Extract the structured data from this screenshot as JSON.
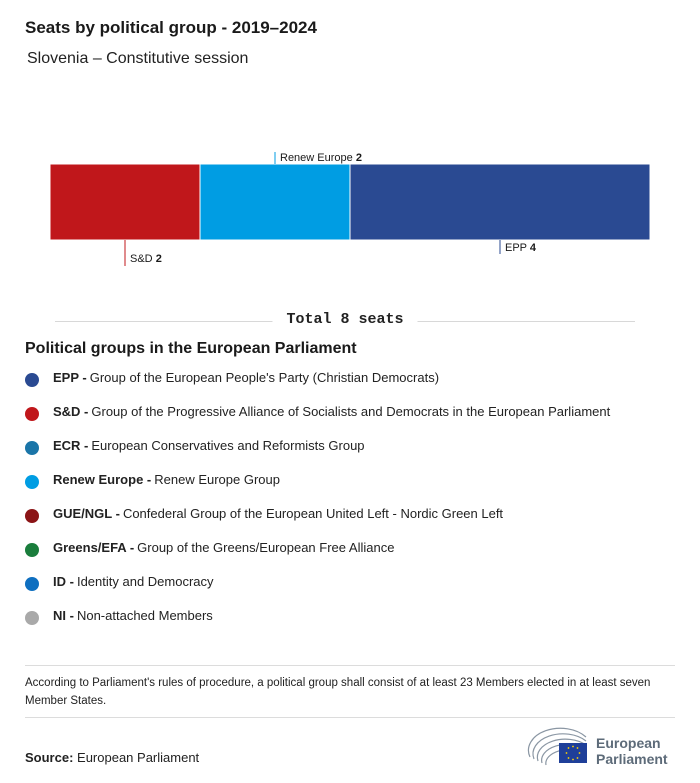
{
  "title": "Seats by political group - 2019–2024",
  "subtitle": "Slovenia – Constitutive session",
  "chart_data": {
    "type": "bar",
    "orientation": "horizontal-stacked",
    "categories": [
      "S&D",
      "Renew Europe",
      "EPP"
    ],
    "values": [
      2,
      2,
      4
    ],
    "colors": [
      "#c0171b",
      "#009de3",
      "#2a4a92"
    ],
    "total_label": "Total 8 seats"
  },
  "groups_title": "Political groups in the European Parliament",
  "groups": [
    {
      "abbr": "EPP -",
      "name": "Group of the European People's Party (Christian Democrats)",
      "color": "#2a4a92"
    },
    {
      "abbr": "S&D -",
      "name": "Group of the Progressive Alliance of Socialists and Democrats in the European Parliament",
      "color": "#c0171b"
    },
    {
      "abbr": "ECR -",
      "name": "European Conservatives and Reformists Group",
      "color": "#1a75a8"
    },
    {
      "abbr": "Renew Europe -",
      "name": "Renew Europe Group",
      "color": "#009de3"
    },
    {
      "abbr": "GUE/NGL -",
      "name": "Confederal Group of the European United Left - Nordic Green Left",
      "color": "#8b1416"
    },
    {
      "abbr": "Greens/EFA -",
      "name": "Group of the Greens/European Free Alliance",
      "color": "#1a7d3c"
    },
    {
      "abbr": "ID -",
      "name": "Identity and Democracy",
      "color": "#0e6fc0"
    },
    {
      "abbr": "NI -",
      "name": "Non-attached Members",
      "color": "#a9a9a9"
    }
  ],
  "note": "According to Parliament's rules of procedure, a political group shall consist of at least 23 Members elected in at least seven Member States.",
  "source_label": "Source:",
  "source_value": "European Parliament",
  "logo": {
    "line1": "European",
    "line2": "Parliament"
  }
}
